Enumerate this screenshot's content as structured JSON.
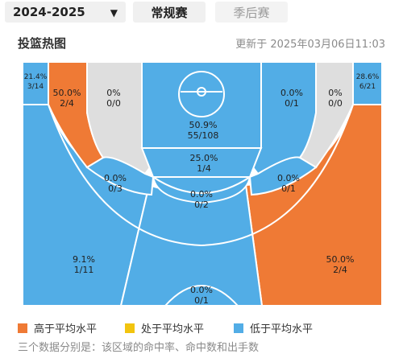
{
  "header": {
    "season": "2024-2025",
    "tabs": [
      {
        "label": "常规赛",
        "active": true
      },
      {
        "label": "季后赛",
        "active": false
      }
    ]
  },
  "heatmap": {
    "title": "投篮热图",
    "updated": "更新于  2025年03月06日11:03",
    "zones": {
      "corner_left": {
        "pct": "21.4%",
        "count": "3/14",
        "level": "low"
      },
      "corner_right": {
        "pct": "28.6%",
        "count": "6/21",
        "level": "low"
      },
      "mid_left_base": {
        "pct": "50.0%",
        "count": "2/4",
        "level": "high"
      },
      "mid_left_wing": {
        "pct": "0%",
        "count": "0/0",
        "level": "none"
      },
      "paint": {
        "pct": "50.9%",
        "count": "55/108",
        "level": "low"
      },
      "mid_right_wing": {
        "pct": "0.0%",
        "count": "0/1",
        "level": "low"
      },
      "mid_right_base": {
        "pct": "0%",
        "count": "0/0",
        "level": "none"
      },
      "elbow_left": {
        "pct": "0.0%",
        "count": "0/3",
        "level": "low"
      },
      "free_throw": {
        "pct": "25.0%",
        "count": "1/4",
        "level": "low"
      },
      "elbow_right": {
        "pct": "0.0%",
        "count": "0/1",
        "level": "low"
      },
      "top_key": {
        "pct": "0.0%",
        "count": "0/2",
        "level": "low"
      },
      "three_left": {
        "pct": "9.1%",
        "count": "1/11",
        "level": "low"
      },
      "three_right": {
        "pct": "50.0%",
        "count": "2/4",
        "level": "high"
      },
      "deep_center": {
        "pct": "0.0%",
        "count": "0/1",
        "level": "low"
      }
    }
  },
  "legend": [
    {
      "label": "高于平均水平",
      "color": "#ef7a35"
    },
    {
      "label": "处于平均水平",
      "color": "#f2c40f"
    },
    {
      "label": "低于平均水平",
      "color": "#52ade6"
    }
  ],
  "footnote": "三个数据分别是：该区域的命中率、命中数和出手数",
  "colors": {
    "high": "#ef7a35",
    "average": "#f2c40f",
    "low": "#52ade6",
    "none": "#dedede"
  }
}
